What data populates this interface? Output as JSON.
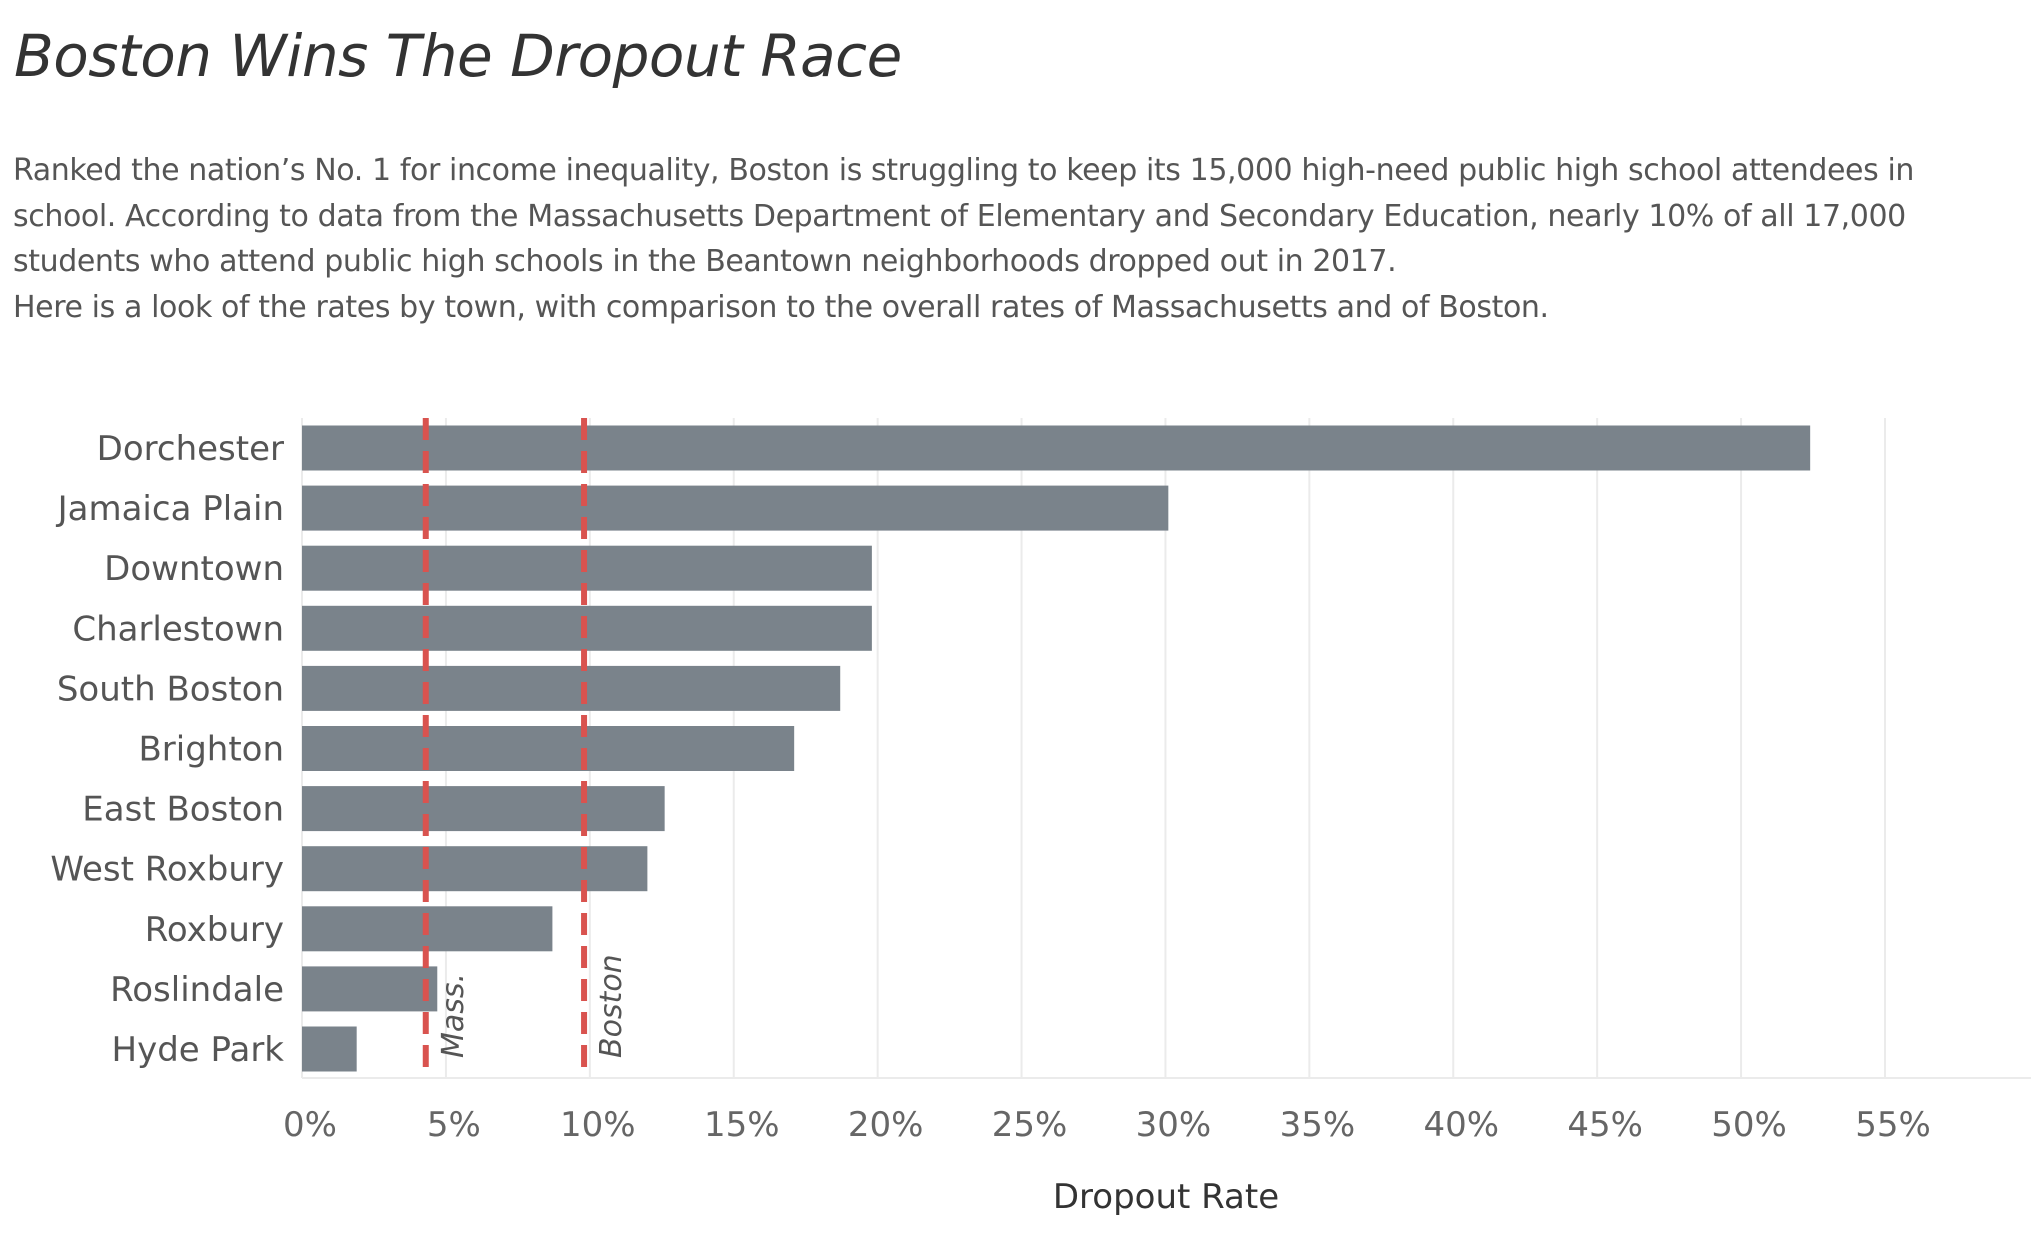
{
  "header": {
    "title": "Boston Wins The Dropout Race",
    "description": [
      "Ranked the nation’s No. 1 for income inequality, Boston is struggling to keep its 15,000 high-need public high school attendees in",
      "school. According to data from the Massachusetts Department of Elementary and Secondary Education, nearly 10% of all 17,000",
      "students who attend public high schools in the Beantown neighborhoods dropped out in 2017.",
      "Here is a look of the rates by town, with comparison to the overall rates of Massachusetts and of Boston."
    ]
  },
  "chart_data": {
    "type": "bar",
    "orientation": "horizontal",
    "title": "Boston Wins The Dropout Race",
    "xlabel": "Dropout Rate",
    "ylabel": "",
    "categories": [
      "Dorchester",
      "Jamaica Plain",
      "Downtown",
      "Charlestown",
      "South Boston",
      "Brighton",
      "East Boston",
      "West Roxbury",
      "Roxbury",
      "Roslindale",
      "Hyde Park"
    ],
    "values": [
      52.4,
      30.1,
      19.8,
      19.8,
      18.7,
      17.1,
      12.6,
      12.0,
      8.7,
      4.7,
      1.9
    ],
    "xlim": [
      0,
      59
    ],
    "xticks": [
      0,
      5,
      10,
      15,
      20,
      25,
      30,
      35,
      40,
      45,
      50,
      55
    ],
    "tick_suffix": "%",
    "grid": "vertical",
    "reference_lines": [
      {
        "label": "Mass.",
        "value": 4.3
      },
      {
        "label": "Boston",
        "value": 9.8
      }
    ],
    "colors": {
      "bar": "#7a838b",
      "reference": "#d9534f",
      "grid": "#ebebeb"
    }
  }
}
